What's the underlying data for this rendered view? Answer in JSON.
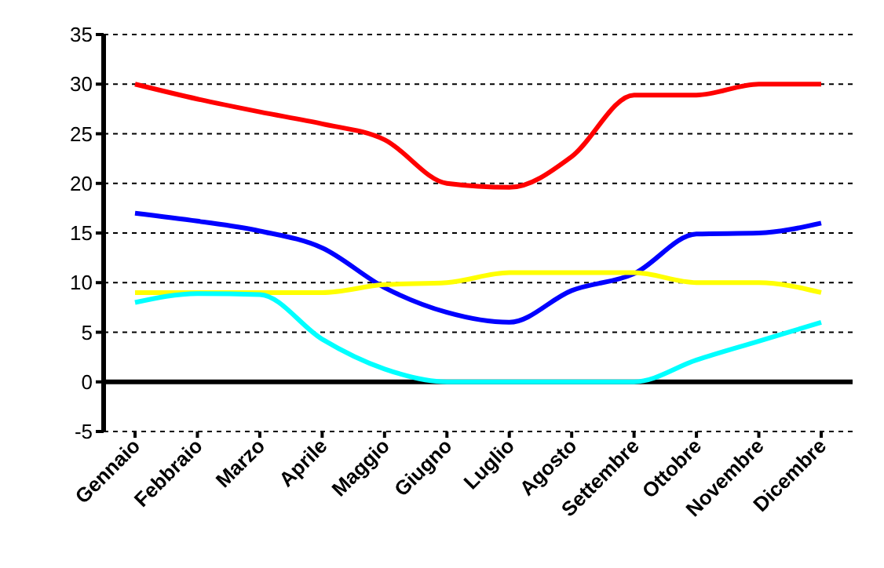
{
  "chart_data": {
    "type": "line",
    "categories": [
      "Gennaio",
      "Febbraio",
      "Marzo",
      "Aprile",
      "Maggio",
      "Giugno",
      "Luglio",
      "Agosto",
      "Settembre",
      "Ottobre",
      "Novembre",
      "Dicembre"
    ],
    "series": [
      {
        "color": "#ff0000",
        "values": [
          30,
          28.5,
          27.2,
          26,
          24.4,
          20,
          19.6,
          22.7,
          28.9,
          28.9,
          30,
          30
        ]
      },
      {
        "color": "#0000ff",
        "values": [
          17,
          16.2,
          15.2,
          13.5,
          9.5,
          7,
          6,
          9.2,
          10.9,
          14.9,
          15,
          16
        ]
      },
      {
        "color": "#ffff00",
        "values": [
          9,
          9,
          9,
          9,
          9.8,
          10,
          11,
          11,
          11,
          10,
          10,
          9
        ]
      },
      {
        "color": "#00ffff",
        "values": [
          8,
          8.9,
          8.8,
          4.3,
          1.3,
          0,
          0,
          0,
          0,
          2.2,
          4.1,
          6
        ]
      }
    ],
    "ylim": [
      -5,
      35
    ],
    "yticks": [
      -5,
      0,
      5,
      10,
      15,
      20,
      25,
      30,
      35
    ],
    "grid": "y",
    "legend": false,
    "marker": "none",
    "line_style": "solid"
  }
}
